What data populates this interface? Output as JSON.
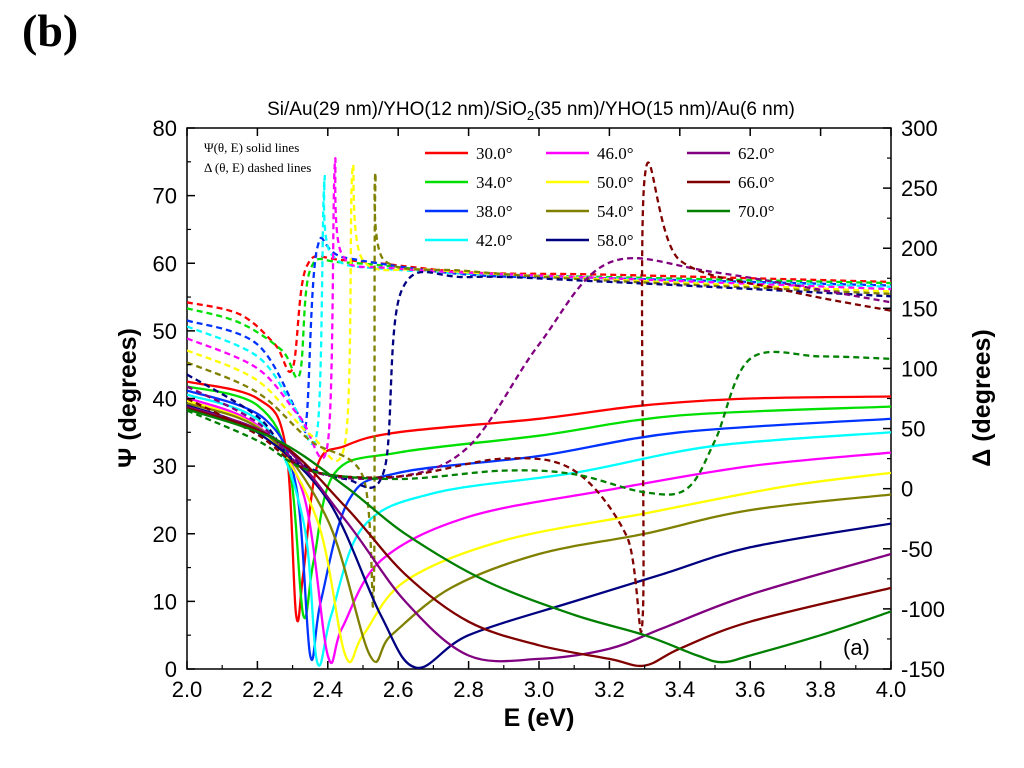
{
  "panel_label": "(b)",
  "chart_data": {
    "type": "line",
    "title": "Si/Au(29 nm)/YHO(12 nm)/SiO",
    "title_sub": "2",
    "title_rest": "(35 nm)/YHO(15 nm)/Au(6 nm)",
    "xlabel": "E (eV)",
    "ylabel_left": "Ψ (degrees)",
    "ylabel_right": "Δ (degrees)",
    "xlim": [
      2.0,
      4.0
    ],
    "ylim_left": [
      0,
      80
    ],
    "ylim_right": [
      -150,
      300
    ],
    "x_ticks": [
      "2.0",
      "2.2",
      "2.4",
      "2.6",
      "2.8",
      "3.0",
      "3.2",
      "3.4",
      "3.6",
      "3.8",
      "4.0"
    ],
    "y_left_ticks": [
      "0",
      "10",
      "20",
      "30",
      "40",
      "50",
      "60",
      "70",
      "80"
    ],
    "y_right_ticks": [
      "-150",
      "-100",
      "-50",
      "0",
      "50",
      "100",
      "150",
      "200",
      "250",
      "300"
    ],
    "notes": [
      "Ψ(θ, E) solid lines",
      "Δ (θ, E) dashed lines"
    ],
    "corner_label": "(a)",
    "grid": false,
    "legend_position": "top-right",
    "series": [
      {
        "name": "30.0°",
        "color": "#ff0000",
        "psi": [
          [
            2.0,
            42.5
          ],
          [
            2.2,
            40
          ],
          [
            2.28,
            33
          ],
          [
            2.31,
            8
          ],
          [
            2.33,
            14
          ],
          [
            2.37,
            30
          ],
          [
            2.45,
            33
          ],
          [
            2.6,
            35
          ],
          [
            3.0,
            37
          ],
          [
            3.3,
            39
          ],
          [
            3.6,
            40
          ],
          [
            4.0,
            40.3
          ]
        ],
        "delta": [
          [
            2.0,
            155
          ],
          [
            2.15,
            145
          ],
          [
            2.25,
            120
          ],
          [
            2.3,
            100
          ],
          [
            2.34,
            185
          ],
          [
            2.45,
            190
          ],
          [
            2.8,
            180
          ],
          [
            3.2,
            178
          ],
          [
            4.0,
            172
          ]
        ]
      },
      {
        "name": "34.0°",
        "color": "#00e000",
        "psi": [
          [
            2.0,
            41.8
          ],
          [
            2.2,
            39
          ],
          [
            2.29,
            30
          ],
          [
            2.33,
            8
          ],
          [
            2.36,
            16
          ],
          [
            2.42,
            29
          ],
          [
            2.6,
            32
          ],
          [
            3.0,
            34.5
          ],
          [
            3.4,
            37.5
          ],
          [
            4.0,
            38.8
          ]
        ],
        "delta": [
          [
            2.0,
            150
          ],
          [
            2.15,
            138
          ],
          [
            2.27,
            115
          ],
          [
            2.32,
            95
          ],
          [
            2.35,
            182
          ],
          [
            2.45,
            188
          ],
          [
            2.8,
            179
          ],
          [
            3.2,
            176
          ],
          [
            4.0,
            171
          ]
        ]
      },
      {
        "name": "38.0°",
        "color": "#0033ff",
        "psi": [
          [
            2.0,
            41.2
          ],
          [
            2.22,
            37
          ],
          [
            2.31,
            27
          ],
          [
            2.35,
            2
          ],
          [
            2.38,
            10
          ],
          [
            2.46,
            25
          ],
          [
            2.6,
            29
          ],
          [
            3.0,
            31.5
          ],
          [
            3.4,
            35
          ],
          [
            4.0,
            37
          ]
        ],
        "delta": [
          [
            2.0,
            140
          ],
          [
            2.2,
            120
          ],
          [
            2.32,
            60
          ],
          [
            2.34,
            60
          ],
          [
            2.37,
            200
          ],
          [
            2.45,
            192
          ],
          [
            2.8,
            178
          ],
          [
            3.2,
            175
          ],
          [
            4.0,
            169
          ]
        ]
      },
      {
        "name": "42.0°",
        "color": "#00ffff",
        "psi": [
          [
            2.0,
            40.6
          ],
          [
            2.22,
            36
          ],
          [
            2.33,
            22
          ],
          [
            2.37,
            1
          ],
          [
            2.41,
            8
          ],
          [
            2.5,
            21
          ],
          [
            2.7,
            26
          ],
          [
            3.1,
            29
          ],
          [
            3.5,
            33
          ],
          [
            4.0,
            35
          ]
        ],
        "delta": [
          [
            2.0,
            135
          ],
          [
            2.2,
            110
          ],
          [
            2.3,
            70
          ],
          [
            2.37,
            48
          ],
          [
            2.39,
            255
          ],
          [
            2.41,
            195
          ],
          [
            2.6,
            182
          ],
          [
            3.2,
            175
          ],
          [
            4.0,
            168
          ]
        ]
      },
      {
        "name": "46.0°",
        "color": "#ff00ff",
        "psi": [
          [
            2.0,
            40.1
          ],
          [
            2.2,
            36
          ],
          [
            2.33,
            26
          ],
          [
            2.4,
            2
          ],
          [
            2.44,
            6
          ],
          [
            2.55,
            16
          ],
          [
            2.8,
            22.5
          ],
          [
            3.2,
            26.5
          ],
          [
            3.6,
            30
          ],
          [
            4.0,
            32
          ]
        ],
        "delta": [
          [
            2.0,
            125
          ],
          [
            2.2,
            100
          ],
          [
            2.32,
            60
          ],
          [
            2.4,
            38
          ],
          [
            2.42,
            270
          ],
          [
            2.44,
            195
          ],
          [
            2.6,
            183
          ],
          [
            3.2,
            175
          ],
          [
            4.0,
            166
          ]
        ]
      },
      {
        "name": "50.0°",
        "color": "#ffff00",
        "psi": [
          [
            2.0,
            39.7
          ],
          [
            2.22,
            35
          ],
          [
            2.37,
            22
          ],
          [
            2.45,
            2
          ],
          [
            2.5,
            5
          ],
          [
            2.62,
            13
          ],
          [
            2.9,
            19
          ],
          [
            3.3,
            23
          ],
          [
            3.7,
            27
          ],
          [
            4.0,
            29
          ]
        ],
        "delta": [
          [
            2.0,
            115
          ],
          [
            2.2,
            90
          ],
          [
            2.35,
            45
          ],
          [
            2.45,
            40
          ],
          [
            2.47,
            265
          ],
          [
            2.5,
            190
          ],
          [
            2.7,
            182
          ],
          [
            3.2,
            174
          ],
          [
            4.0,
            164
          ]
        ]
      },
      {
        "name": "54.0°",
        "color": "#808000",
        "psi": [
          [
            2.0,
            39.3
          ],
          [
            2.22,
            35
          ],
          [
            2.4,
            22
          ],
          [
            2.52,
            2
          ],
          [
            2.58,
            5
          ],
          [
            2.75,
            12
          ],
          [
            3.0,
            17
          ],
          [
            3.3,
            20
          ],
          [
            3.6,
            23.5
          ],
          [
            4.0,
            25.8
          ]
        ],
        "delta": [
          [
            2.0,
            105
          ],
          [
            2.2,
            80
          ],
          [
            2.35,
            40
          ],
          [
            2.5,
            10
          ],
          [
            2.53,
            -90
          ],
          [
            2.535,
            250
          ],
          [
            2.56,
            190
          ],
          [
            2.8,
            181
          ],
          [
            3.2,
            173
          ],
          [
            4.0,
            162
          ]
        ]
      },
      {
        "name": "58.0°",
        "color": "#000080",
        "psi": [
          [
            2.0,
            39.0
          ],
          [
            2.2,
            35
          ],
          [
            2.4,
            25
          ],
          [
            2.55,
            8
          ],
          [
            2.65,
            0.2
          ],
          [
            2.8,
            5
          ],
          [
            3.1,
            10
          ],
          [
            3.35,
            14
          ],
          [
            3.6,
            18
          ],
          [
            4.0,
            21.5
          ]
        ],
        "delta": [
          [
            2.0,
            95
          ],
          [
            2.2,
            60
          ],
          [
            2.3,
            25
          ],
          [
            2.45,
            8
          ],
          [
            2.56,
            15
          ],
          [
            2.61,
            165
          ],
          [
            2.8,
            176
          ],
          [
            3.2,
            172
          ],
          [
            4.0,
            160
          ]
        ]
      },
      {
        "name": "62.0°",
        "color": "#800080",
        "psi": [
          [
            2.0,
            38.8
          ],
          [
            2.25,
            34
          ],
          [
            2.45,
            22
          ],
          [
            2.62,
            10
          ],
          [
            2.8,
            2
          ],
          [
            3.0,
            1.5
          ],
          [
            3.2,
            3
          ],
          [
            3.35,
            6
          ],
          [
            3.6,
            11
          ],
          [
            4.0,
            17
          ]
        ],
        "delta": [
          [
            2.0,
            85
          ],
          [
            2.2,
            55
          ],
          [
            2.35,
            15
          ],
          [
            2.6,
            10
          ],
          [
            2.8,
            35
          ],
          [
            3.0,
            120
          ],
          [
            3.2,
            188
          ],
          [
            3.5,
            180
          ],
          [
            4.0,
            155
          ]
        ]
      },
      {
        "name": "66.0°",
        "color": "#800000",
        "psi": [
          [
            2.0,
            38.6
          ],
          [
            2.25,
            34
          ],
          [
            2.45,
            24
          ],
          [
            2.62,
            14
          ],
          [
            2.8,
            7
          ],
          [
            3.0,
            3.5
          ],
          [
            3.2,
            1.5
          ],
          [
            3.3,
            0.5
          ],
          [
            3.4,
            3
          ],
          [
            3.6,
            7
          ],
          [
            4.0,
            12
          ]
        ],
        "delta": [
          [
            2.0,
            75
          ],
          [
            2.2,
            45
          ],
          [
            2.35,
            15
          ],
          [
            2.6,
            10
          ],
          [
            2.9,
            25
          ],
          [
            3.1,
            15
          ],
          [
            3.25,
            -40
          ],
          [
            3.295,
            -105
          ],
          [
            3.3,
            258
          ],
          [
            3.4,
            190
          ],
          [
            3.7,
            165
          ],
          [
            4.0,
            148
          ]
        ]
      },
      {
        "name": "70.0°",
        "color": "#008000",
        "psi": [
          [
            2.0,
            38.4
          ],
          [
            2.25,
            34
          ],
          [
            2.45,
            27
          ],
          [
            2.62,
            20
          ],
          [
            2.85,
            13
          ],
          [
            3.1,
            8
          ],
          [
            3.3,
            5
          ],
          [
            3.45,
            2
          ],
          [
            3.52,
            1
          ],
          [
            3.6,
            2
          ],
          [
            3.8,
            5
          ],
          [
            4.0,
            8.5
          ]
        ],
        "delta": [
          [
            2.0,
            65
          ],
          [
            2.2,
            40
          ],
          [
            2.35,
            15
          ],
          [
            2.6,
            8
          ],
          [
            2.9,
            15
          ],
          [
            3.1,
            12
          ],
          [
            3.3,
            -3
          ],
          [
            3.42,
            0
          ],
          [
            3.5,
            40
          ],
          [
            3.6,
            108
          ],
          [
            3.8,
            110
          ],
          [
            4.0,
            108
          ]
        ]
      }
    ]
  }
}
